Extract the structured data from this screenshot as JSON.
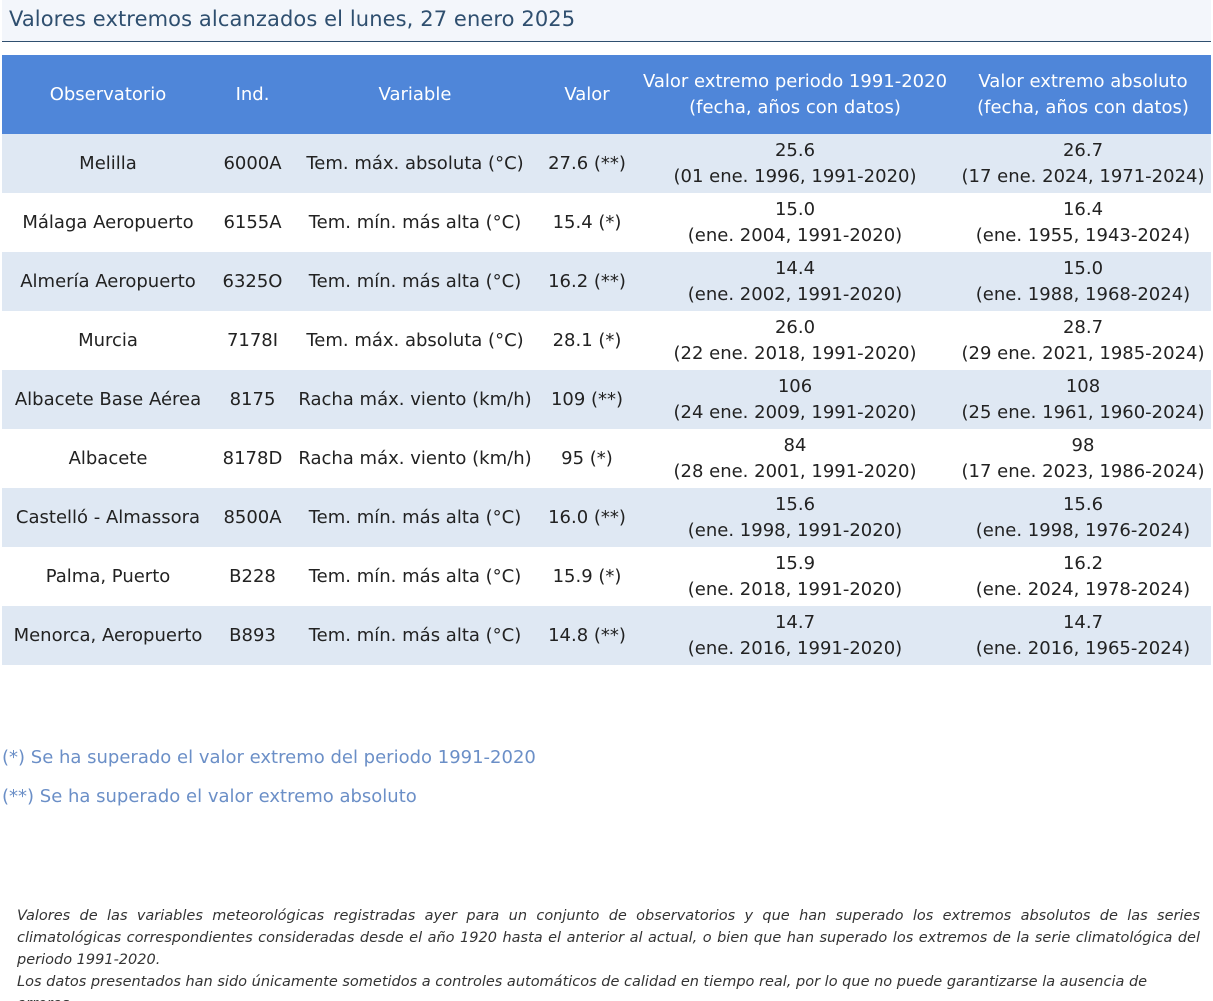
{
  "title": "Valores extremos alcanzados el lunes, 27 enero 2025",
  "table": {
    "headers": {
      "observatorio": "Observatorio",
      "ind": "Ind.",
      "variable": "Variable",
      "valor": "Valor",
      "periodo_line1": "Valor extremo periodo 1991-2020",
      "periodo_line2": "(fecha, años con datos)",
      "absoluto_line1": "Valor extremo absoluto",
      "absoluto_line2": "(fecha, años con datos)"
    },
    "rows": [
      {
        "observatorio": "Melilla",
        "ind": "6000A",
        "variable": "Tem. máx. absoluta (°C)",
        "valor": "27.6 (**)",
        "periodo_valor": "25.6",
        "periodo_fecha": "(01 ene. 1996, 1991-2020)",
        "absoluto_valor": "26.7",
        "absoluto_fecha": "(17 ene. 2024, 1971-2024)"
      },
      {
        "observatorio": "Málaga Aeropuerto",
        "ind": "6155A",
        "variable": "Tem. mín. más alta (°C)",
        "valor": "15.4 (*)",
        "periodo_valor": "15.0",
        "periodo_fecha": "(ene. 2004, 1991-2020)",
        "absoluto_valor": "16.4",
        "absoluto_fecha": "(ene. 1955, 1943-2024)"
      },
      {
        "observatorio": "Almería Aeropuerto",
        "ind": "6325O",
        "variable": "Tem. mín. más alta (°C)",
        "valor": "16.2 (**)",
        "periodo_valor": "14.4",
        "periodo_fecha": "(ene. 2002, 1991-2020)",
        "absoluto_valor": "15.0",
        "absoluto_fecha": "(ene. 1988, 1968-2024)"
      },
      {
        "observatorio": "Murcia",
        "ind": "7178I",
        "variable": "Tem. máx. absoluta (°C)",
        "valor": "28.1 (*)",
        "periodo_valor": "26.0",
        "periodo_fecha": "(22 ene. 2018, 1991-2020)",
        "absoluto_valor": "28.7",
        "absoluto_fecha": "(29 ene. 2021, 1985-2024)"
      },
      {
        "observatorio": "Albacete Base Aérea",
        "ind": "8175",
        "variable": "Racha máx. viento (km/h)",
        "valor": "109 (**)",
        "periodo_valor": "106",
        "periodo_fecha": "(24 ene. 2009, 1991-2020)",
        "absoluto_valor": "108",
        "absoluto_fecha": "(25 ene. 1961, 1960-2024)"
      },
      {
        "observatorio": "Albacete",
        "ind": "8178D",
        "variable": "Racha máx. viento (km/h)",
        "valor": "95 (*)",
        "periodo_valor": "84",
        "periodo_fecha": "(28 ene. 2001, 1991-2020)",
        "absoluto_valor": "98",
        "absoluto_fecha": "(17 ene. 2023, 1986-2024)"
      },
      {
        "observatorio": "Castelló - Almassora",
        "ind": "8500A",
        "variable": "Tem. mín. más alta (°C)",
        "valor": "16.0 (**)",
        "periodo_valor": "15.6",
        "periodo_fecha": "(ene. 1998, 1991-2020)",
        "absoluto_valor": "15.6",
        "absoluto_fecha": "(ene. 1998, 1976-2024)"
      },
      {
        "observatorio": "Palma, Puerto",
        "ind": "B228",
        "variable": "Tem. mín. más alta (°C)",
        "valor": "15.9 (*)",
        "periodo_valor": "15.9",
        "periodo_fecha": "(ene. 2018, 1991-2020)",
        "absoluto_valor": "16.2",
        "absoluto_fecha": "(ene. 2024, 1978-2024)"
      },
      {
        "observatorio": "Menorca, Aeropuerto",
        "ind": "B893",
        "variable": "Tem. mín. más alta (°C)",
        "valor": "14.8 (**)",
        "periodo_valor": "14.7",
        "periodo_fecha": "(ene. 2016, 1991-2020)",
        "absoluto_valor": "14.7",
        "absoluto_fecha": "(ene. 2016, 1965-2024)"
      }
    ]
  },
  "notes": {
    "single": "(*) Se ha superado el valor extremo del periodo 1991-2020",
    "double": "(**) Se ha superado el valor extremo absoluto"
  },
  "footer": {
    "paragraph1": "Valores de las variables meteorológicas registradas ayer para un conjunto de observatorios y que han superado los extremos absolutos de las series climatológicas correspondientes consideradas desde el año 1920 hasta el anterior al actual, o bien que han superado los extremos de la serie climatológica del periodo 1991-2020.",
    "paragraph2": "Los datos presentados han sido únicamente sometidos a controles automáticos de calidad en tiempo real, por lo que no puede garantizarse la ausencia de errores."
  },
  "colors": {
    "title_text": "#2f4f6f",
    "header_bg": "#4f86d9",
    "row_alt_bg": "#dfe8f3",
    "note_text": "#6b8fc7"
  }
}
